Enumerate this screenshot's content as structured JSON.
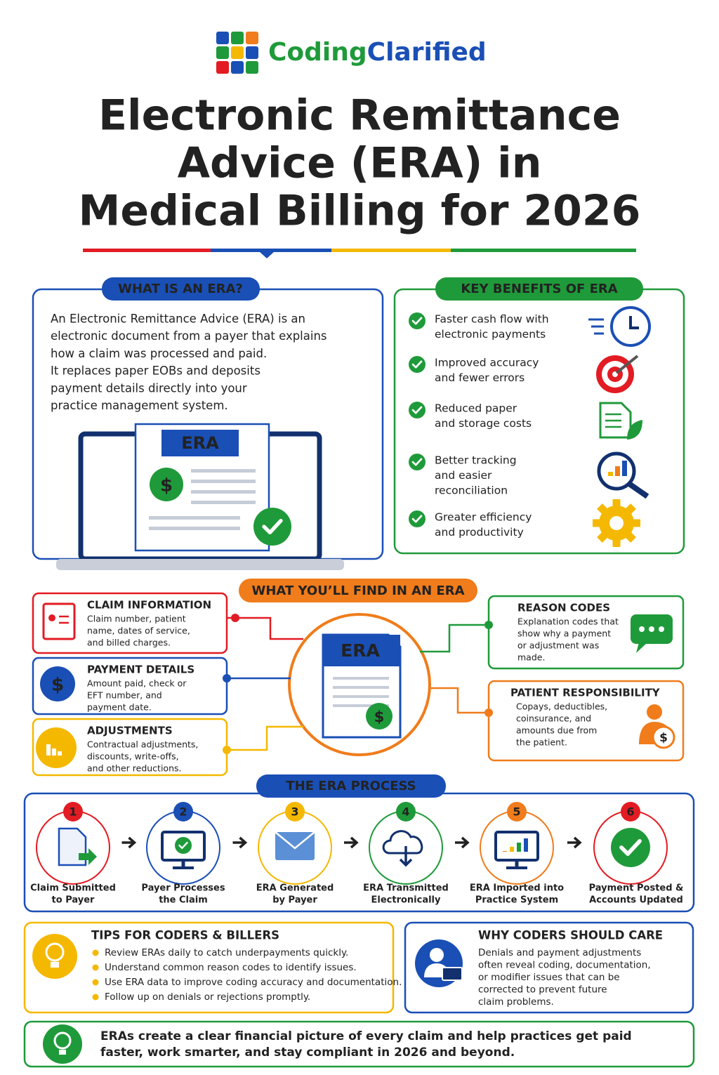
{
  "brand": {
    "part1": "Coding",
    "part2": "Clarified"
  },
  "title": {
    "line1": "Electronic Remittance",
    "line2": "Advice (ERA) in",
    "line3": "Medical Billing for 2026"
  },
  "what_is": {
    "heading": "WHAT IS AN ERA?",
    "lines": [
      "An Electronic Remittance Advice (ERA) is an",
      "electronic document from a payer that explains",
      "how a claim was processed and paid.",
      "It replaces paper EOBs and deposits",
      "payment details directly into your",
      "practice management system."
    ],
    "doc_label": "ERA",
    "currency_symbol": "$"
  },
  "benefits": {
    "heading": "KEY BENEFITS OF ERA",
    "items": [
      [
        "Faster cash flow with",
        "electronic payments"
      ],
      [
        "Improved accuracy",
        "and fewer errors"
      ],
      [
        "Reduced paper",
        "and storage costs"
      ],
      [
        "Better tracking",
        "and easier",
        "reconciliation"
      ],
      [
        "Greater efficiency",
        "and productivity"
      ]
    ]
  },
  "find": {
    "heading": "WHAT YOU’LL FIND IN AN ERA",
    "center_label": "ERA",
    "items": [
      {
        "title": "CLAIM INFORMATION",
        "lines": [
          "Claim number, patient",
          "name, dates of service,",
          "and billed charges."
        ]
      },
      {
        "title": "PAYMENT DETAILS",
        "lines": [
          "Amount paid, check or",
          "EFT number, and",
          "payment date."
        ]
      },
      {
        "title": "ADJUSTMENTS",
        "lines": [
          "Contractual adjustments,",
          "discounts, write-offs,",
          "and other reductions."
        ]
      },
      {
        "title": "REASON CODES",
        "lines": [
          "Explanation codes that",
          "show why a payment",
          "or adjustment was",
          "made."
        ]
      },
      {
        "title": "PATIENT RESPONSIBILITY",
        "lines": [
          "Copays, deductibles,",
          "coinsurance, and",
          "amounts due from",
          "the patient."
        ]
      }
    ]
  },
  "process": {
    "heading": "THE ERA PROCESS",
    "steps": [
      {
        "number": 1,
        "label": [
          "Claim Submitted",
          "to Payer"
        ]
      },
      {
        "number": 2,
        "label": [
          "Payer Processes",
          "the Claim"
        ]
      },
      {
        "number": 3,
        "label": [
          "ERA Generated",
          "by Payer"
        ]
      },
      {
        "number": 4,
        "label": [
          "ERA Transmitted",
          "Electronically"
        ]
      },
      {
        "number": 5,
        "label": [
          "ERA Imported into",
          "Practice System"
        ]
      },
      {
        "number": 6,
        "label": [
          "Payment Posted &",
          "Accounts Updated"
        ]
      }
    ]
  },
  "tips": {
    "heading": "TIPS FOR CODERS & BILLERS",
    "items": [
      "Review ERAs daily to catch underpayments quickly.",
      "Understand common reason codes to identify issues.",
      "Use ERA data to improve coding accuracy and documentation.",
      "Follow up on denials or rejections promptly."
    ]
  },
  "why": {
    "heading": "WHY CODERS SHOULD CARE",
    "lines": [
      "Denials and payment adjustments",
      "often reveal coding, documentation,",
      "or modifier issues that can be",
      "corrected to prevent future",
      "claim problems."
    ]
  },
  "footer": {
    "lines": [
      "ERAs create a clear financial picture of every claim and help practices get paid",
      "faster, work smarter, and stay compliant in 2026 and beyond."
    ]
  }
}
